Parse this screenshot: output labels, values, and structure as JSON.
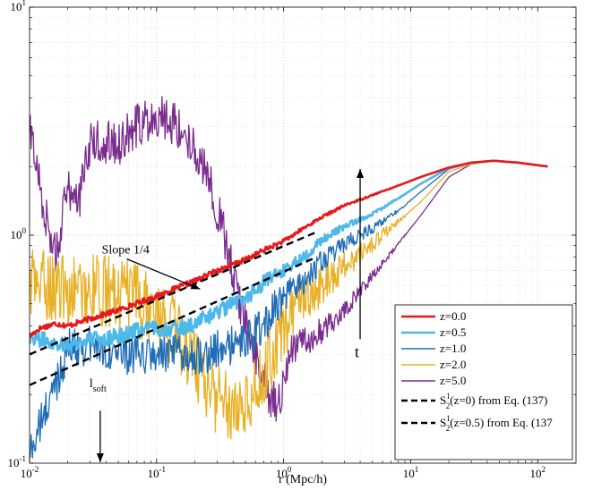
{
  "chart_data": {
    "type": "line",
    "xscale": "log",
    "yscale": "log",
    "xlim": [
      0.01,
      200
    ],
    "ylim": [
      0.1,
      10
    ],
    "grid": true,
    "xlabel": "r (Mpc/h)",
    "ylabel": "",
    "legend_position": "bottom-right",
    "x_ticks": [
      {
        "value": 0.01,
        "mantissa": "10",
        "exp": "-2"
      },
      {
        "value": 0.1,
        "mantissa": "10",
        "exp": "-1"
      },
      {
        "value": 1,
        "mantissa": "10",
        "exp": "0"
      },
      {
        "value": 10,
        "mantissa": "10",
        "exp": "1"
      },
      {
        "value": 100,
        "mantissa": "10",
        "exp": "2"
      }
    ],
    "y_ticks": [
      {
        "value": 0.1,
        "mantissa": "10",
        "exp": "-1"
      },
      {
        "value": 1,
        "mantissa": "10",
        "exp": "0"
      },
      {
        "value": 10,
        "mantissa": "10",
        "exp": "1"
      }
    ],
    "series": [
      {
        "name": "z=0.0",
        "color": "#e41a1c",
        "width": 2.6,
        "noise": 0.012,
        "x": [
          0.01,
          0.012,
          0.016,
          0.02,
          0.03,
          0.05,
          0.1,
          0.2,
          0.3,
          0.5,
          0.7,
          1,
          1.5,
          2,
          3,
          5,
          8,
          12,
          20,
          30,
          45,
          70,
          120
        ],
        "y": [
          0.36,
          0.39,
          0.41,
          0.4,
          0.43,
          0.47,
          0.54,
          0.63,
          0.7,
          0.78,
          0.86,
          0.94,
          1.09,
          1.2,
          1.35,
          1.5,
          1.65,
          1.8,
          1.98,
          2.08,
          2.12,
          2.08,
          2.0
        ]
      },
      {
        "name": "z=0.5",
        "color": "#4db8ea",
        "width": 2.6,
        "noise": 0.035,
        "x": [
          0.01,
          0.015,
          0.02,
          0.03,
          0.05,
          0.07,
          0.1,
          0.15,
          0.2,
          0.3,
          0.5,
          0.7,
          1,
          1.5,
          2,
          3,
          5,
          8,
          12,
          20,
          30,
          45,
          70,
          120
        ],
        "y": [
          0.36,
          0.34,
          0.33,
          0.35,
          0.36,
          0.38,
          0.39,
          0.39,
          0.41,
          0.46,
          0.53,
          0.62,
          0.7,
          0.82,
          0.95,
          1.09,
          1.24,
          1.45,
          1.68,
          1.97,
          2.08,
          2.12,
          2.08,
          2.0
        ]
      },
      {
        "name": "z=1.0",
        "color": "#1f6db5",
        "width": 1.3,
        "noise": 0.09,
        "x": [
          0.01,
          0.015,
          0.02,
          0.03,
          0.05,
          0.07,
          0.1,
          0.15,
          0.2,
          0.3,
          0.5,
          0.7,
          0.8,
          1,
          1.5,
          2,
          3,
          5,
          8,
          12,
          20,
          30,
          45,
          70,
          120
        ],
        "y": [
          0.11,
          0.2,
          0.32,
          0.33,
          0.31,
          0.29,
          0.3,
          0.3,
          0.3,
          0.31,
          0.34,
          0.4,
          0.46,
          0.52,
          0.65,
          0.76,
          0.91,
          1.07,
          1.28,
          1.55,
          1.95,
          2.07,
          2.12,
          2.08,
          2.0
        ]
      },
      {
        "name": "z=2.0",
        "color": "#e8b024",
        "width": 1.3,
        "noise": 0.16,
        "x": [
          0.01,
          0.015,
          0.02,
          0.03,
          0.05,
          0.07,
          0.1,
          0.15,
          0.2,
          0.3,
          0.4,
          0.5,
          0.6,
          0.8,
          1,
          1.2,
          1.5,
          2,
          3,
          5,
          8,
          12,
          20,
          30,
          45,
          70,
          120
        ],
        "y": [
          0.62,
          0.6,
          0.56,
          0.58,
          0.55,
          0.52,
          0.45,
          0.36,
          0.28,
          0.19,
          0.18,
          0.19,
          0.22,
          0.29,
          0.38,
          0.45,
          0.53,
          0.61,
          0.74,
          0.92,
          1.15,
          1.4,
          1.9,
          2.05,
          2.12,
          2.08,
          2.0
        ]
      },
      {
        "name": "z=5.0",
        "color": "#7b2d8e",
        "width": 1.3,
        "noise": 0.1,
        "x": [
          0.01,
          0.011,
          0.013,
          0.016,
          0.02,
          0.025,
          0.03,
          0.04,
          0.05,
          0.07,
          0.1,
          0.12,
          0.15,
          0.2,
          0.25,
          0.3,
          0.4,
          0.5,
          0.6,
          0.7,
          0.8,
          0.9,
          1,
          1.1,
          1.3,
          1.6,
          2,
          3,
          5,
          8,
          12,
          20,
          30,
          45,
          70,
          120
        ],
        "y": [
          2.8,
          2.3,
          1.3,
          0.8,
          1.6,
          1.5,
          2.5,
          2.6,
          2.5,
          3.0,
          3.4,
          3.3,
          3.0,
          2.4,
          1.8,
          1.3,
          0.7,
          0.4,
          0.29,
          0.23,
          0.19,
          0.18,
          0.22,
          0.29,
          0.35,
          0.35,
          0.38,
          0.47,
          0.66,
          0.92,
          1.22,
          1.8,
          2.05,
          2.12,
          2.08,
          2.0
        ]
      }
    ],
    "fits": [
      {
        "name": "from Eq. (137)",
        "S_base": "S",
        "S_sup": "1",
        "S_sub": "2",
        "z_text": "(z=0)",
        "color": "#000000",
        "x": [
          0.01,
          1.8
        ],
        "y": [
          0.3,
          1.03
        ]
      },
      {
        "name": "from Eq. (137",
        "S_base": "S",
        "S_sup": "1",
        "S_sub": "2",
        "z_text": "(z=0.5)",
        "color": "#000000",
        "x": [
          0.01,
          1.8
        ],
        "y": [
          0.22,
          0.8
        ]
      }
    ],
    "annotations": {
      "slope_label": "Slope 1/4",
      "slope_text_at": [
        0.037,
        0.83
      ],
      "slope_arrow_to": [
        0.22,
        0.58
      ],
      "t_label": "t",
      "t_arrow_x": 4.0,
      "t_arrow_from_y": 0.35,
      "t_arrow_to_y": 1.95,
      "l_soft_main": "l",
      "l_soft_sub": "soft",
      "l_soft_x": 0.036,
      "l_soft_text_y": 0.215,
      "l_soft_arrow_from_y": 0.17,
      "l_soft_arrow_to_y": 0.1
    }
  }
}
